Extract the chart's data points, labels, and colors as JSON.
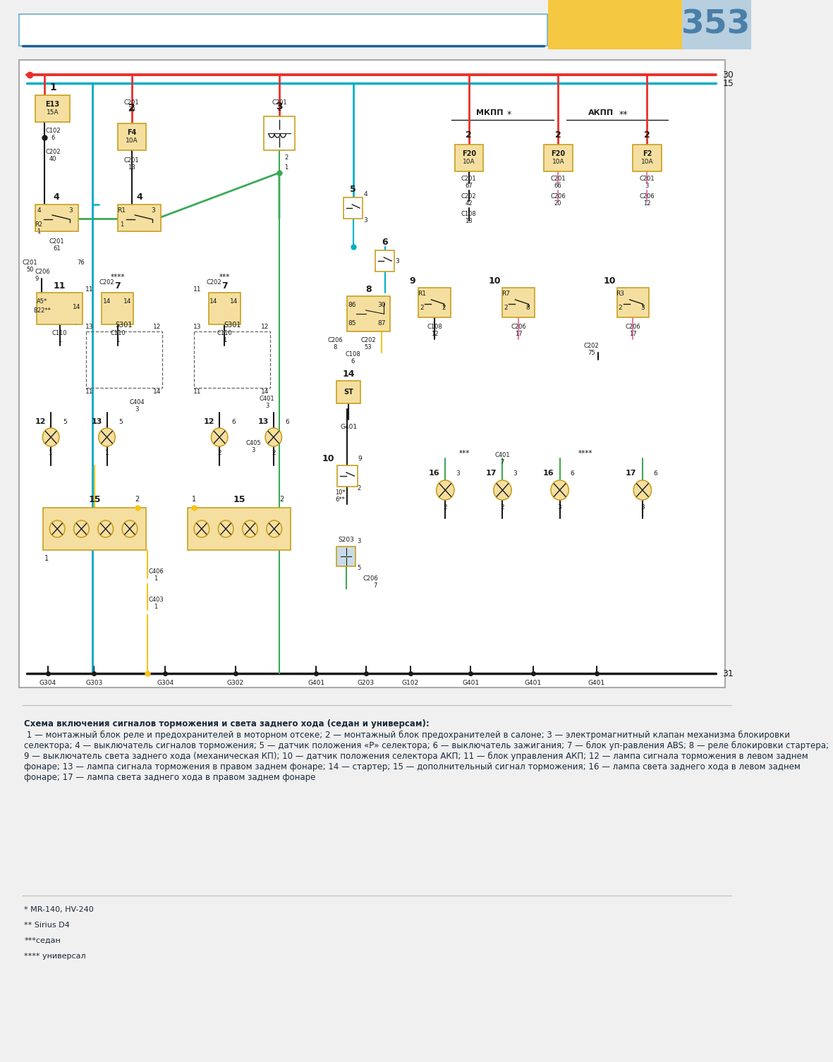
{
  "page_bg": "#f0f0f0",
  "header_gold": "#f5c842",
  "header_blue": "#b8cfe0",
  "page_number": "353",
  "wire_red": "#e8302a",
  "wire_blue": "#2e7dbf",
  "wire_green": "#3aaa55",
  "wire_yellow": "#f5c518",
  "wire_pink": "#e87ab0",
  "wire_black": "#1a1a1a",
  "wire_cyan": "#00b0c8",
  "comp_fill": "#f5dfa0",
  "comp_border": "#c8a020",
  "text_color": "#1a2a3a",
  "title_bold": "Схема включения сигналов торможения и света заднего хода (седан и универсам):",
  "desc_normal": "1 — монтажный блок реле и предохранителей в моторном отсеке; 2 — монтажный блок предохранителей в салоне; 3 — электромагнитный клапан механизма блокировки селектора; 4 — выключатель сигналов торможения; 5 — датчик положения «P» селектора; 6 — выключатель зажигания; 7 — блок уп-равления ABS; 8 — реле блокировки стартера; 9 — выключатель света заднего хода (механическая КП); 10 — датчик положения селектора АКП; 11 — блок управления АКП; 12 — лампа сигнала торможения в левом заднем фонаре; 13 — лампа сигнала торможения в правом заднем фонаре; 14 — стартер; 15 — дополнительный сигнал торможения; 16 — лампа света заднего хода в левом заднем фонаре; 17 — лампа света заднего хода в правом заднем фонаре",
  "fn1": "* MR-140, HV-240",
  "fn2": "** Sirius D4",
  "fn3": "***седан",
  "fn4": "**** универсал"
}
